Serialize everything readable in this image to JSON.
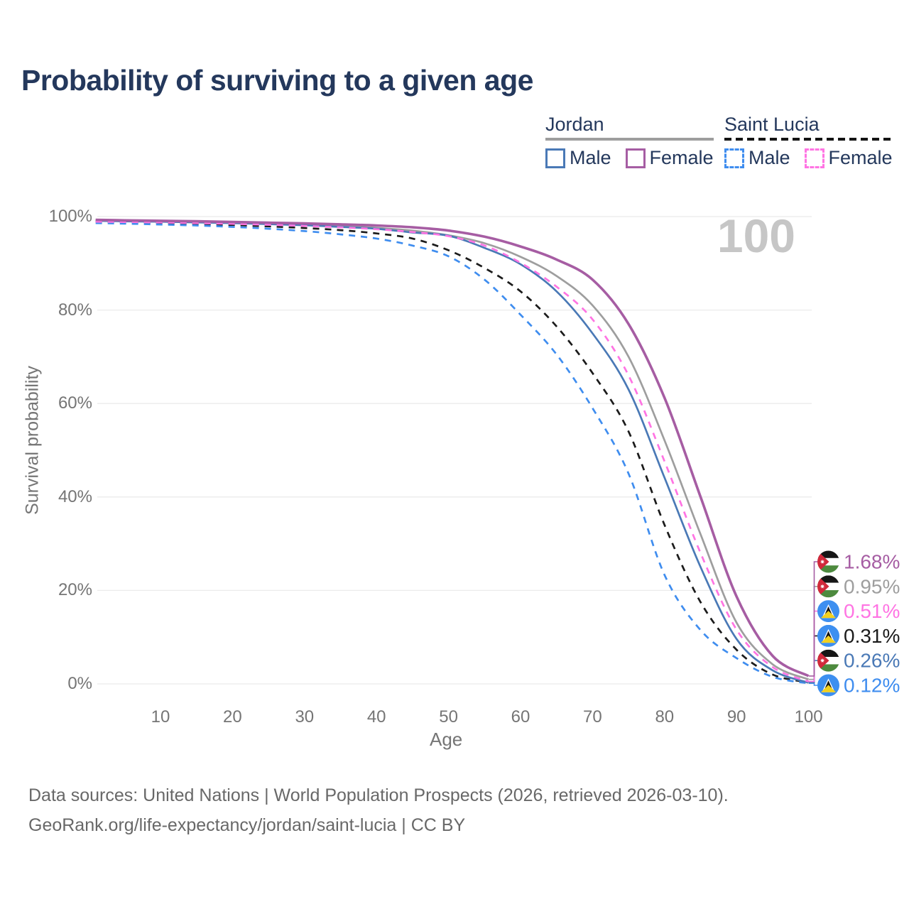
{
  "title": "Probability of surviving to a given age",
  "watermark_age": "100",
  "legend": {
    "groups": [
      {
        "name": "Jordan",
        "line_style": "solid",
        "items": [
          {
            "label": "Male",
            "color": "#4a79b6"
          },
          {
            "label": "Female",
            "color": "#a65da3"
          }
        ]
      },
      {
        "name": "Saint Lucia",
        "line_style": "dashed",
        "items": [
          {
            "label": "Male",
            "color": "#3f8def"
          },
          {
            "label": "Female",
            "color": "#ff74e3"
          }
        ]
      }
    ]
  },
  "colors": {
    "title_navy": "#24385c",
    "jordan_male": "#4a79b6",
    "jordan_female": "#a65da3",
    "jordan_total": "#9e9e9e",
    "saint_lucia_male": "#3f8def",
    "saint_lucia_female": "#ff74e3",
    "saint_lucia_total": "#1b1b1b",
    "grid": "#ebebeb",
    "axis_text": "#757575",
    "watermark": "#c6c6c6"
  },
  "chart_data": {
    "type": "line",
    "title": "Probability of surviving to a given age",
    "xlabel": "Age",
    "ylabel": "Survival probability",
    "xlim": [
      1,
      100
    ],
    "ylim": [
      0,
      100
    ],
    "grid": "horizontal gridlines every 20%",
    "legend_position": "top-right",
    "x_ticks": [
      10,
      20,
      30,
      40,
      50,
      60,
      70,
      80,
      90,
      100
    ],
    "y_ticks": [
      {
        "value": 0,
        "label": "0%"
      },
      {
        "value": 20,
        "label": "20%"
      },
      {
        "value": 40,
        "label": "40%"
      },
      {
        "value": 60,
        "label": "60%"
      },
      {
        "value": 80,
        "label": "80%"
      },
      {
        "value": 100,
        "label": "100%"
      }
    ],
    "ages": [
      1,
      5,
      10,
      15,
      20,
      25,
      30,
      35,
      40,
      45,
      50,
      55,
      60,
      65,
      70,
      75,
      80,
      85,
      90,
      95,
      100
    ],
    "series": [
      {
        "name": "Jordan total",
        "country": "Jordan",
        "sex": "both",
        "color": "#9e9e9e",
        "dash": false,
        "values": [
          99.2,
          99.1,
          99.0,
          98.85,
          98.7,
          98.5,
          98.3,
          98.0,
          97.6,
          97.0,
          96.0,
          94.3,
          91.4,
          87.3,
          81.0,
          70.0,
          52.1,
          32.0,
          13.1,
          4.2,
          0.95
        ],
        "end_label": {
          "text": "0.95%",
          "flag": "jordan",
          "slot": 1
        }
      },
      {
        "name": "Saint Lucia total",
        "country": "Saint Lucia",
        "sex": "both",
        "color": "#1b1b1b",
        "dash": true,
        "values": [
          98.9,
          98.8,
          98.65,
          98.45,
          98.2,
          97.9,
          97.55,
          97.1,
          96.4,
          95.3,
          92.8,
          89.0,
          84.0,
          76.5,
          66.5,
          54.0,
          34.0,
          17.5,
          7.3,
          2.0,
          0.31
        ],
        "end_label": {
          "text": "0.31%",
          "flag": "saint-lucia",
          "slot": 3
        }
      },
      {
        "name": "Saint Lucia male",
        "country": "Saint Lucia",
        "sex": "male",
        "color": "#3f8def",
        "dash": true,
        "values": [
          98.6,
          98.5,
          98.3,
          98.1,
          97.8,
          97.4,
          96.9,
          96.2,
          95.3,
          93.8,
          91.5,
          86.5,
          79.0,
          70.5,
          59.0,
          45.0,
          23.3,
          11.5,
          5.5,
          1.5,
          0.12
        ],
        "end_label": {
          "text": "0.12%",
          "flag": "saint-lucia",
          "slot": 5
        }
      },
      {
        "name": "Jordan male",
        "country": "Jordan",
        "sex": "male",
        "color": "#4a79b6",
        "dash": false,
        "values": [
          99.1,
          99.0,
          98.9,
          98.75,
          98.6,
          98.4,
          98.15,
          97.8,
          97.4,
          96.6,
          95.9,
          93.3,
          89.8,
          84.0,
          75.0,
          63.0,
          44.1,
          25.0,
          9.6,
          2.9,
          0.26
        ],
        "end_label": {
          "text": "0.26%",
          "flag": "jordan",
          "slot": 4
        }
      },
      {
        "name": "Saint Lucia female",
        "country": "Saint Lucia",
        "sex": "female",
        "color": "#ff74e3",
        "dash": true,
        "values": [
          98.9,
          98.85,
          98.75,
          98.6,
          98.45,
          98.25,
          98.0,
          97.7,
          97.3,
          96.7,
          95.8,
          93.8,
          90.1,
          85.0,
          78.0,
          66.0,
          47.6,
          28.0,
          11.6,
          3.6,
          0.51
        ],
        "end_label": {
          "text": "0.51%",
          "flag": "saint-lucia",
          "slot": 2
        }
      },
      {
        "name": "Jordan female",
        "country": "Jordan",
        "sex": "female",
        "color": "#a65da3",
        "dash": false,
        "values": [
          99.3,
          99.2,
          99.1,
          99.0,
          98.85,
          98.7,
          98.55,
          98.35,
          98.1,
          97.7,
          97.0,
          95.7,
          93.6,
          90.8,
          86.5,
          77.0,
          61.2,
          40.0,
          18.7,
          6.0,
          1.68
        ],
        "end_label": {
          "text": "1.68%",
          "flag": "jordan",
          "slot": 0
        }
      }
    ]
  },
  "footer": {
    "line1": "Data sources: United Nations | World Population Prospects (2026, retrieved 2026-03-10).",
    "line2": "GeoRank.org/life-expectancy/jordan/saint-lucia | CC BY"
  }
}
